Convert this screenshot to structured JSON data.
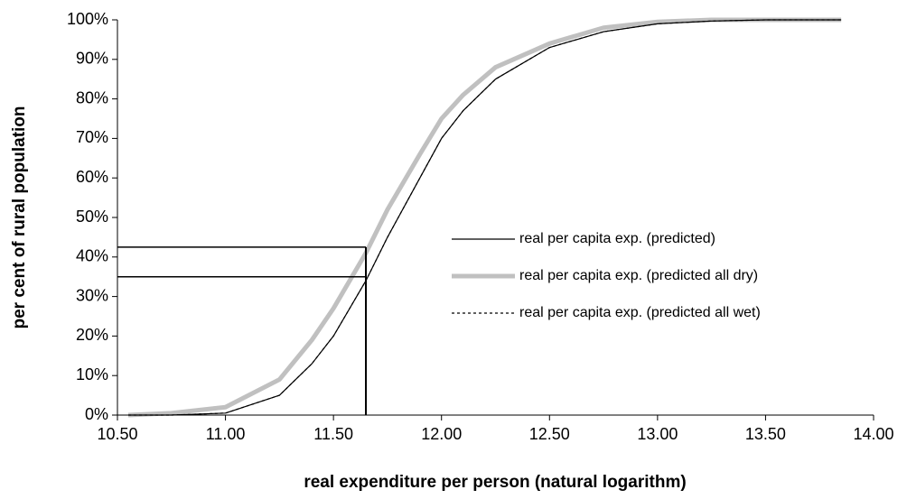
{
  "chart_data": {
    "type": "line",
    "x_label": "real expenditure per person (natural logarithm)",
    "y_label": "per cent of rural population",
    "x": [
      10.55,
      10.75,
      11.0,
      11.25,
      11.4,
      11.5,
      11.65,
      11.75,
      11.9,
      12.0,
      12.1,
      12.25,
      12.5,
      12.75,
      13.0,
      13.25,
      13.5,
      13.85
    ],
    "series": [
      {
        "name": "real per capita exp. (predicted)",
        "color": "#000000",
        "style": "thin",
        "values": [
          0,
          0,
          0.5,
          5,
          13,
          20,
          34,
          45,
          60,
          70,
          77,
          85,
          93,
          97,
          99,
          99.7,
          100,
          100
        ]
      },
      {
        "name": "real per capita exp. (predicted all dry)",
        "color": "#c0c0c0",
        "style": "thick",
        "values": [
          0,
          0.5,
          2,
          9,
          19,
          27,
          41,
          52,
          66,
          75,
          81,
          88,
          94,
          98,
          99.5,
          100,
          100,
          100
        ]
      },
      {
        "name": "real per capita exp. (predicted all wet)",
        "color": "#000000",
        "style": "dashed",
        "values": [
          0,
          0,
          0.5,
          5,
          13,
          20,
          34,
          45,
          60,
          70,
          77,
          85,
          93,
          97,
          99,
          99.7,
          100,
          100
        ]
      }
    ],
    "reference_lines": [
      {
        "x": 11.65,
        "y": 42.5
      },
      {
        "x": 11.65,
        "y": 35
      }
    ],
    "xlim": [
      10.5,
      14
    ],
    "xticks": [
      {
        "value": 10.5,
        "label": "10.50"
      },
      {
        "value": 11,
        "label": "11.00"
      },
      {
        "value": 11.5,
        "label": "11.50"
      },
      {
        "value": 12,
        "label": "12.00"
      },
      {
        "value": 12.5,
        "label": "12.50"
      },
      {
        "value": 13,
        "label": "13.00"
      },
      {
        "value": 13.5,
        "label": "13.50"
      },
      {
        "value": 14,
        "label": "14.00"
      }
    ],
    "ylim": [
      0,
      100
    ],
    "yticks": [
      {
        "value": 0,
        "label": "0%"
      },
      {
        "value": 10,
        "label": "10%"
      },
      {
        "value": 20,
        "label": "20%"
      },
      {
        "value": 30,
        "label": "30%"
      },
      {
        "value": 40,
        "label": "40%"
      },
      {
        "value": 50,
        "label": "50%"
      },
      {
        "value": 60,
        "label": "60%"
      },
      {
        "value": 70,
        "label": "70%"
      },
      {
        "value": 80,
        "label": "80%"
      },
      {
        "value": 90,
        "label": "90%"
      },
      {
        "value": 100,
        "label": "100%"
      }
    ],
    "grid": false,
    "legend": "right"
  }
}
